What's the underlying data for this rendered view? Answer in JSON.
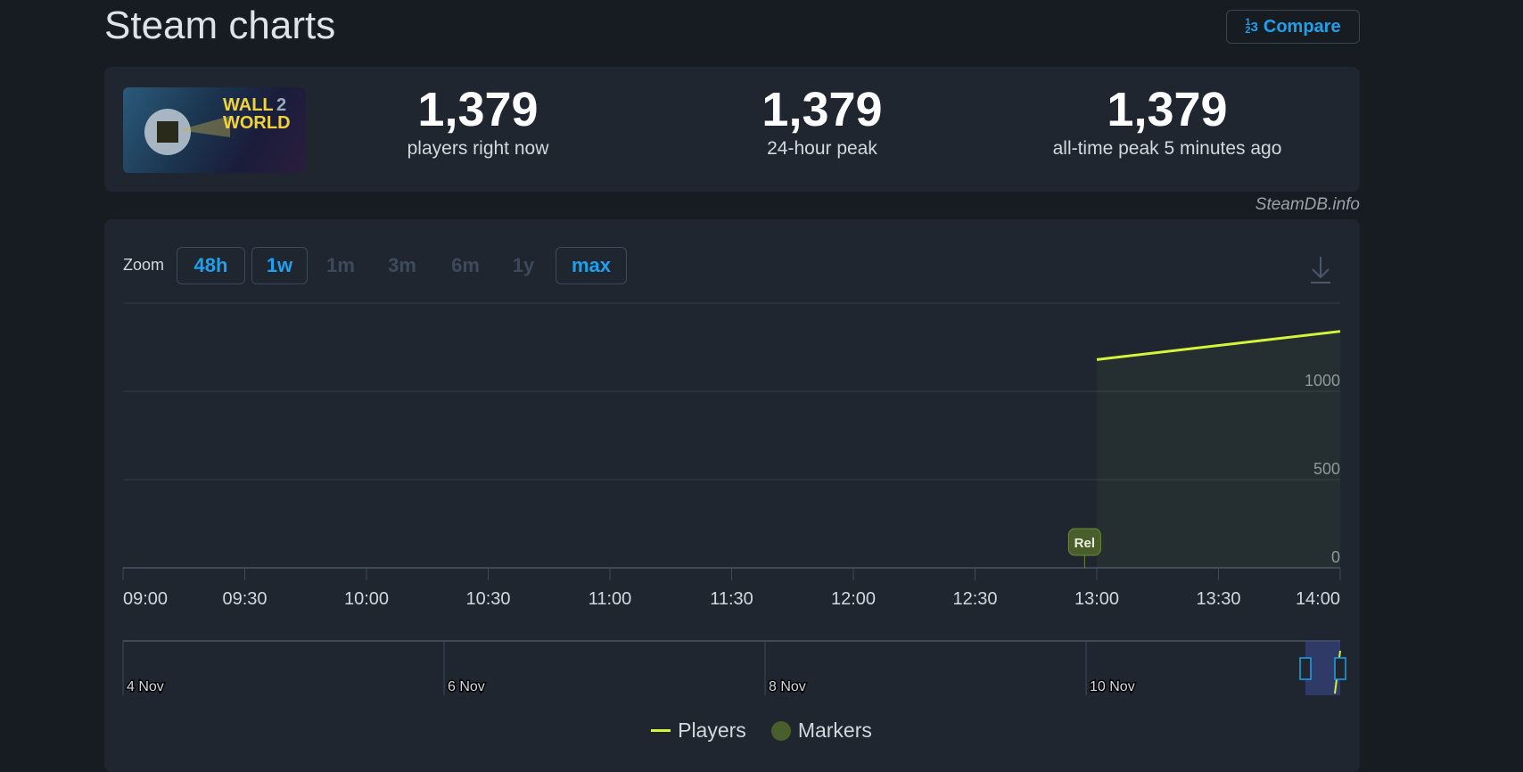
{
  "header": {
    "title": "Steam charts",
    "compare_label": "Compare",
    "compare_icon": "fraction-1-2-3-icon"
  },
  "stats": [
    {
      "value": "1,379",
      "label": "players right now"
    },
    {
      "value": "1,379",
      "label": "24-hour peak"
    },
    {
      "value": "1,379",
      "label": "all-time peak 5 minutes ago"
    }
  ],
  "game_image_text": "WALL WORLD 2",
  "credit": "SteamDB.info",
  "zoom": {
    "label": "Zoom",
    "options": [
      {
        "label": "48h",
        "enabled": true
      },
      {
        "label": "1w",
        "enabled": true
      },
      {
        "label": "1m",
        "enabled": false
      },
      {
        "label": "3m",
        "enabled": false
      },
      {
        "label": "6m",
        "enabled": false
      },
      {
        "label": "1y",
        "enabled": false
      },
      {
        "label": "max",
        "enabled": true
      }
    ],
    "download_icon": "download-icon"
  },
  "colors": {
    "players": "#d4f53c",
    "markers": "#4a5e2c",
    "accent": "#1fa0ea"
  },
  "chart_data": {
    "type": "area",
    "x_ticks": [
      "09:00",
      "09:30",
      "10:00",
      "10:30",
      "11:00",
      "11:30",
      "12:00",
      "12:30",
      "13:00",
      "13:30",
      "14:00"
    ],
    "xlim": [
      "09:00",
      "14:00"
    ],
    "ylim": [
      0,
      1500
    ],
    "y_ticks": [
      0,
      500,
      1000
    ],
    "grid": true,
    "series": [
      {
        "name": "Players",
        "x": [
          "13:00",
          "14:00"
        ],
        "y": [
          1180,
          1340
        ]
      }
    ],
    "markers": [
      {
        "label": "Rel",
        "x": "12:57"
      }
    ],
    "navigator": {
      "labels": [
        "4 Nov",
        "6 Nov",
        "8 Nov",
        "10 Nov"
      ]
    },
    "legend": {
      "position": "bottom",
      "items": [
        "Players",
        "Markers"
      ]
    }
  }
}
